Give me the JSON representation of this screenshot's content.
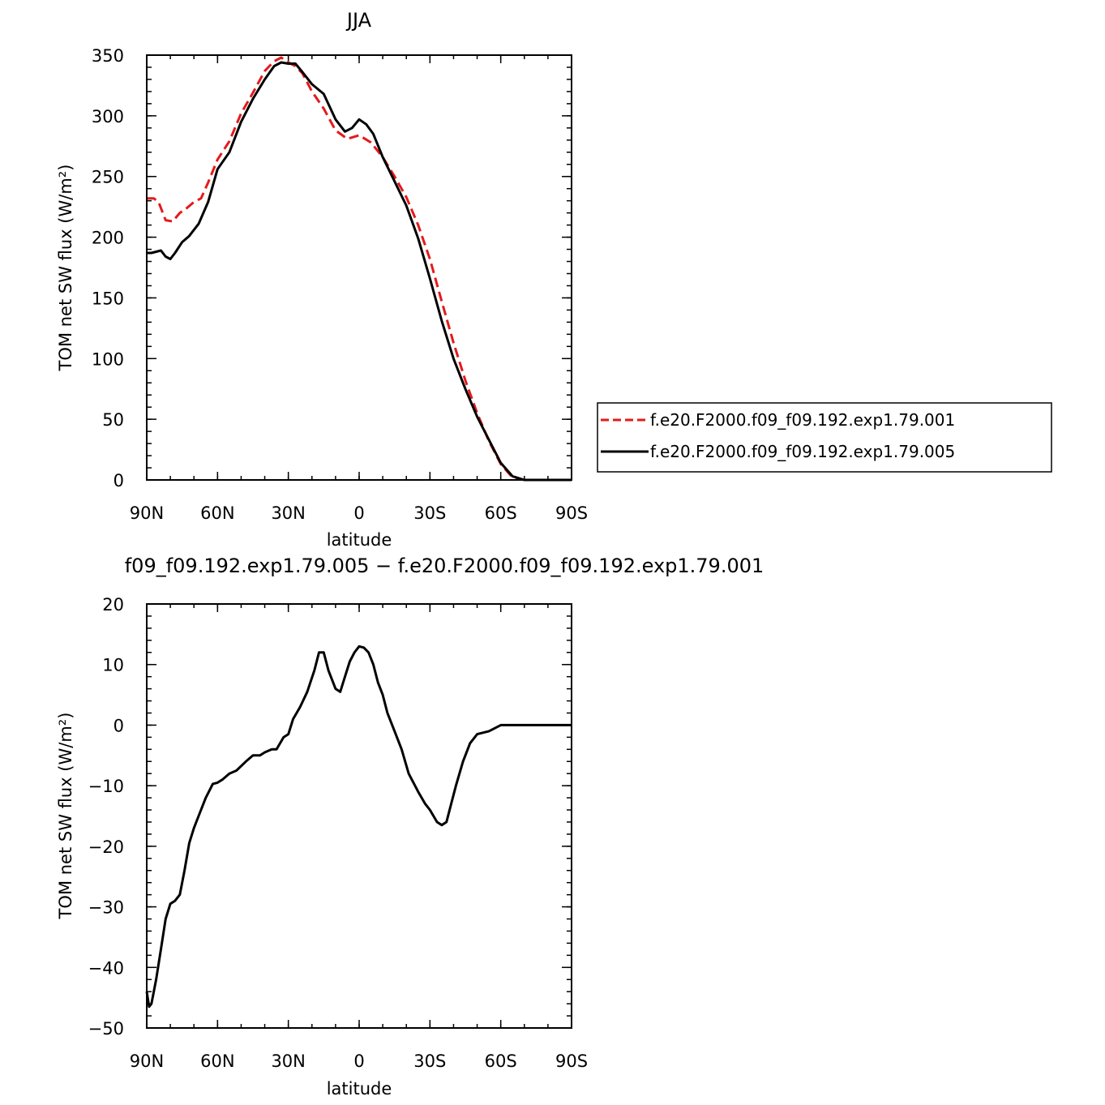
{
  "chart_data": [
    {
      "type": "line",
      "title": "JJA",
      "xlabel": "latitude",
      "ylabel": "TOM net SW flux (W/m²)",
      "xlim": [
        90,
        -90
      ],
      "ylim": [
        0,
        350
      ],
      "xticks": [
        90,
        60,
        30,
        0,
        -30,
        -60,
        -90
      ],
      "xtick_labels": [
        "90N",
        "60N",
        "30N",
        "0",
        "30S",
        "60S",
        "90S"
      ],
      "yticks": [
        0,
        50,
        100,
        150,
        200,
        250,
        300,
        350
      ],
      "ytick_labels": [
        "0",
        "50",
        "100",
        "150",
        "200",
        "250",
        "300",
        "350"
      ],
      "grid": false,
      "legend_position": "right",
      "series": [
        {
          "name": "f.e20.F2000.f09_f09.192.exp1.79.001",
          "color": "#e41a1c",
          "dash": "dashed",
          "x": [
            90,
            87,
            85,
            82,
            79,
            76,
            73,
            70,
            67,
            64,
            60,
            55,
            50,
            45,
            40,
            36,
            33,
            30,
            27,
            24,
            20,
            15,
            10,
            5,
            0,
            -5,
            -10,
            -15,
            -20,
            -25,
            -30,
            -35,
            -40,
            -45,
            -50,
            -55,
            -60,
            -65,
            -70,
            -80,
            -90
          ],
          "y": [
            232,
            232,
            229,
            214,
            213,
            220,
            224,
            229,
            232,
            245,
            264,
            279,
            302,
            319,
            337,
            345,
            348,
            344,
            341,
            335,
            320,
            306,
            288,
            281,
            284,
            278,
            266,
            250,
            233,
            210,
            182,
            147,
            113,
            82,
            55,
            32,
            13,
            2,
            0,
            0,
            0
          ]
        },
        {
          "name": "f.e20.F2000.f09_f09.192.exp1.79.005",
          "color": "#000000",
          "dash": "solid",
          "x": [
            90,
            88,
            86,
            84,
            82,
            80,
            78,
            75,
            72,
            68,
            64,
            60,
            55,
            50,
            45,
            40,
            36,
            33,
            30,
            27,
            24,
            20,
            15,
            10,
            6,
            3,
            0,
            -3,
            -6,
            -10,
            -15,
            -20,
            -25,
            -30,
            -35,
            -40,
            -45,
            -50,
            -55,
            -60,
            -65,
            -70,
            -80,
            -90
          ],
          "y": [
            187,
            187,
            188,
            189,
            184,
            182,
            187,
            196,
            201,
            211,
            229,
            256,
            270,
            295,
            314,
            330,
            341,
            344,
            343,
            343,
            336,
            326,
            318,
            297,
            287,
            290,
            297,
            293,
            285,
            266,
            246,
            226,
            199,
            166,
            131,
            100,
            75,
            52,
            33,
            14,
            3,
            0,
            0,
            0
          ]
        }
      ]
    },
    {
      "type": "line",
      "title": "f09_f09.192.exp1.79.005 − f.e20.F2000.f09_f09.192.exp1.79.001",
      "xlabel": "latitude",
      "ylabel": "TOM net SW flux (W/m²)",
      "xlim": [
        90,
        -90
      ],
      "ylim": [
        -50,
        20
      ],
      "xticks": [
        90,
        60,
        30,
        0,
        -30,
        -60,
        -90
      ],
      "xtick_labels": [
        "90N",
        "60N",
        "30N",
        "0",
        "30S",
        "60S",
        "90S"
      ],
      "yticks": [
        -50,
        -40,
        -30,
        -20,
        -10,
        0,
        10,
        20
      ],
      "ytick_labels": [
        "−50",
        "−40",
        "−30",
        "−20",
        "−10",
        "0",
        "10",
        "20"
      ],
      "grid": false,
      "series": [
        {
          "color": "#000000",
          "dash": "solid",
          "x": [
            90,
            89,
            88,
            86,
            84,
            82,
            80,
            78,
            76,
            74,
            72,
            70,
            68,
            65,
            62,
            60,
            58,
            55,
            52,
            48,
            45,
            42,
            40,
            37,
            35,
            32,
            30,
            28,
            25,
            22,
            19,
            17,
            15,
            13,
            10,
            8,
            6,
            4,
            2,
            0,
            -2,
            -4,
            -6,
            -8,
            -10,
            -12,
            -15,
            -18,
            -21,
            -25,
            -28,
            -30,
            -33,
            -35,
            -37,
            -39,
            -41,
            -44,
            -47,
            -50,
            -55,
            -60,
            -63,
            -66,
            -70,
            -75,
            -80,
            -90
          ],
          "y": [
            -44,
            -46.5,
            -46,
            -42,
            -37,
            -32,
            -29.5,
            -29,
            -28,
            -24,
            -19.5,
            -17,
            -15,
            -12,
            -9.7,
            -9.5,
            -9,
            -8,
            -7.5,
            -6,
            -5,
            -5,
            -4.5,
            -4,
            -4,
            -2,
            -1.5,
            1,
            3,
            5.5,
            9,
            12,
            12,
            9,
            6,
            5.5,
            8,
            10.5,
            12,
            13,
            12.8,
            12,
            10,
            7,
            5,
            2,
            -1,
            -4,
            -8,
            -11,
            -13,
            -14,
            -16,
            -16.5,
            -16,
            -13,
            -10,
            -6,
            -3,
            -1.5,
            -1,
            0,
            0,
            0,
            0,
            0,
            0,
            0
          ]
        }
      ]
    }
  ]
}
